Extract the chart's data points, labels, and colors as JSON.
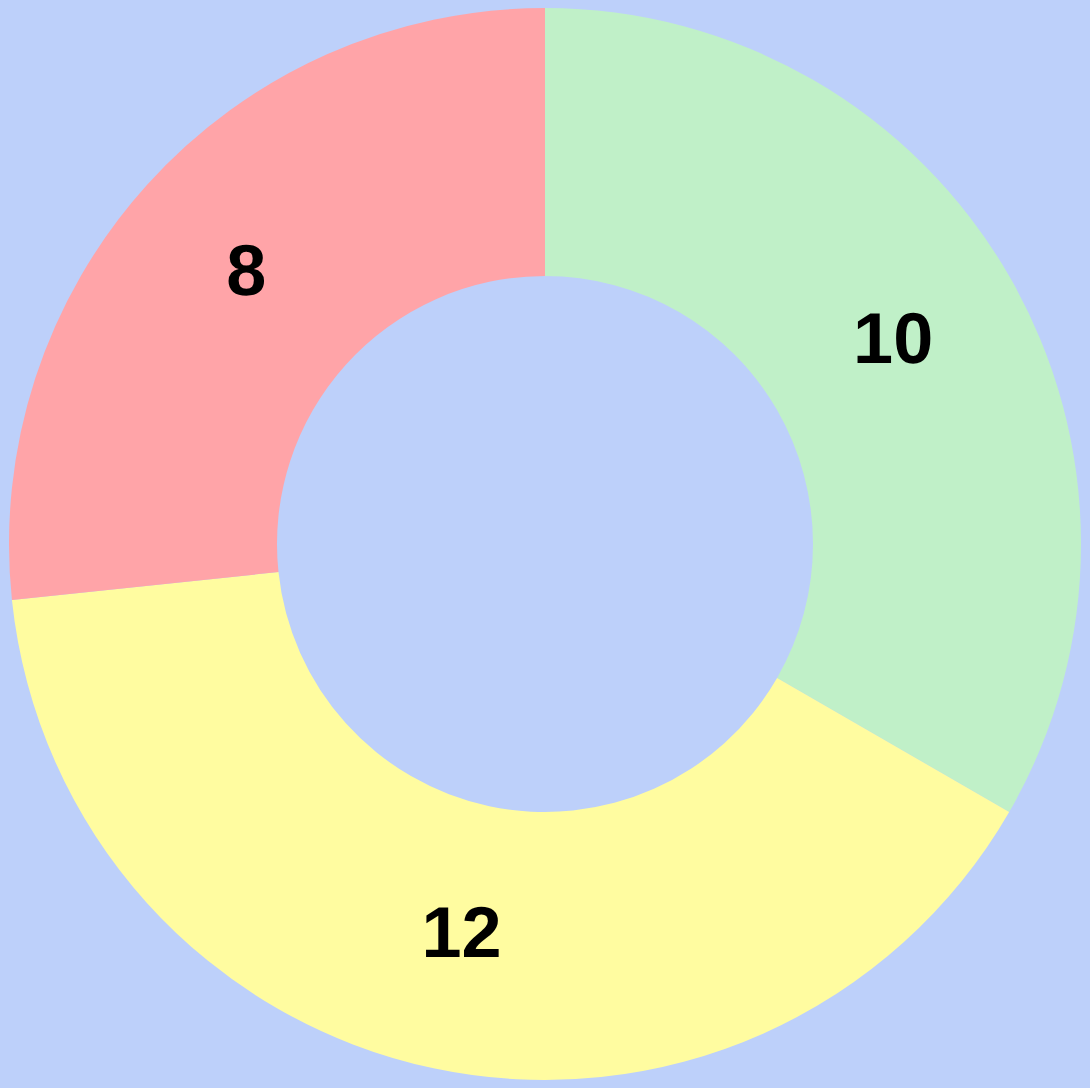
{
  "chart_data": {
    "type": "donut",
    "categories": [
      null,
      null,
      null
    ],
    "values": [
      10,
      12,
      8
    ],
    "colors": [
      "#c0f0c8",
      "#fffca0",
      "#ffa4a8"
    ],
    "data_labels": true,
    "legend": false
  }
}
